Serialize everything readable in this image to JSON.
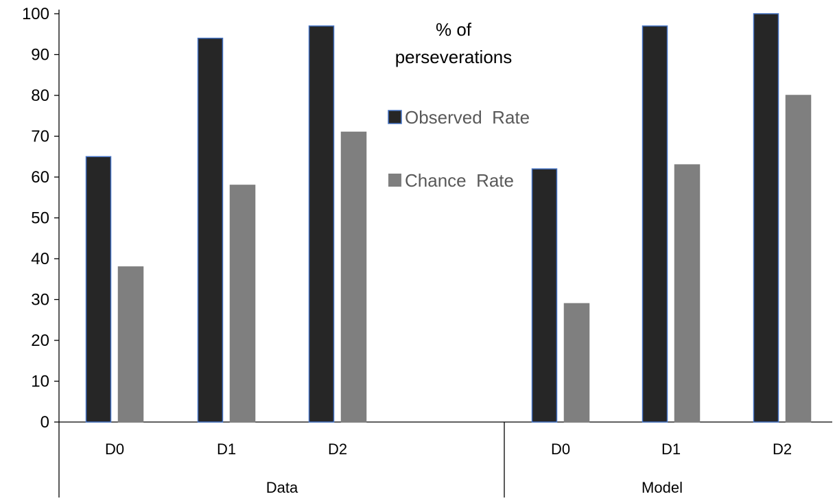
{
  "chart_data": {
    "type": "bar",
    "title_lines": [
      "% of",
      "perseverations"
    ],
    "groups": [
      {
        "label": "Data",
        "categories": [
          "D0",
          "D1",
          "D2"
        ]
      },
      {
        "label": "Model",
        "categories": [
          "D0",
          "D1",
          "D2"
        ]
      }
    ],
    "series": [
      {
        "name": "Observed  Rate",
        "color": "#262626",
        "edge_color": "#4472c4",
        "values": [
          65,
          94,
          97,
          62,
          97,
          100
        ]
      },
      {
        "name": "Chance  Rate",
        "color": "#7f7f7f",
        "edge_color": "#7f7f7f",
        "values": [
          38,
          58,
          71,
          29,
          63,
          80
        ]
      }
    ],
    "ylim": [
      0,
      100
    ],
    "yticks": [
      0,
      10,
      20,
      30,
      40,
      50,
      60,
      70,
      80,
      90,
      100
    ],
    "grid": false,
    "legend_position": "upper-middle"
  }
}
